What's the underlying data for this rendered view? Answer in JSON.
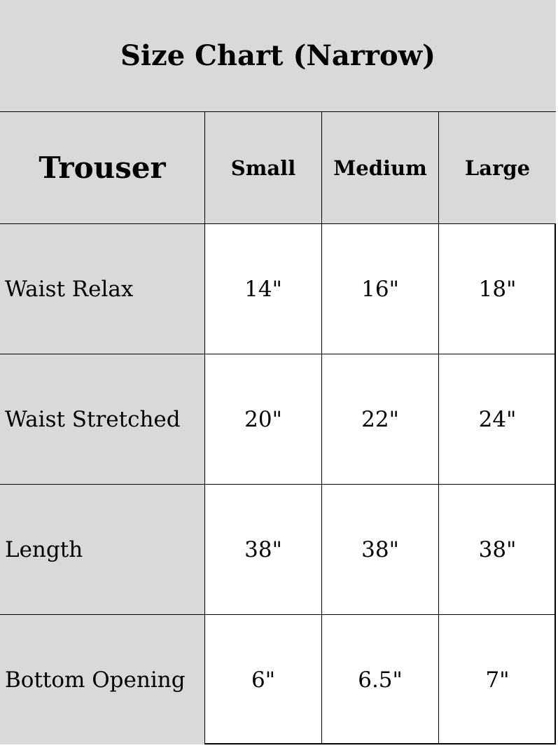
{
  "title": "Size Chart (Narrow)",
  "table": {
    "corner": "Trouser",
    "columns": [
      "Small",
      "Medium",
      "Large"
    ],
    "rows": [
      {
        "label": "Waist Relax",
        "values": [
          "14\"",
          "16\"",
          "18\""
        ]
      },
      {
        "label": "Waist Stretched",
        "values": [
          "20\"",
          "22\"",
          "24\""
        ]
      },
      {
        "label": "Length",
        "values": [
          "38\"",
          "38\"",
          "38\""
        ]
      },
      {
        "label": "Bottom Opening",
        "values": [
          "6\"",
          "6.5\"",
          "7\""
        ]
      }
    ]
  },
  "colors": {
    "header_bg": "#d9d9d9",
    "cell_bg": "#ffffff",
    "border": "#000000"
  }
}
